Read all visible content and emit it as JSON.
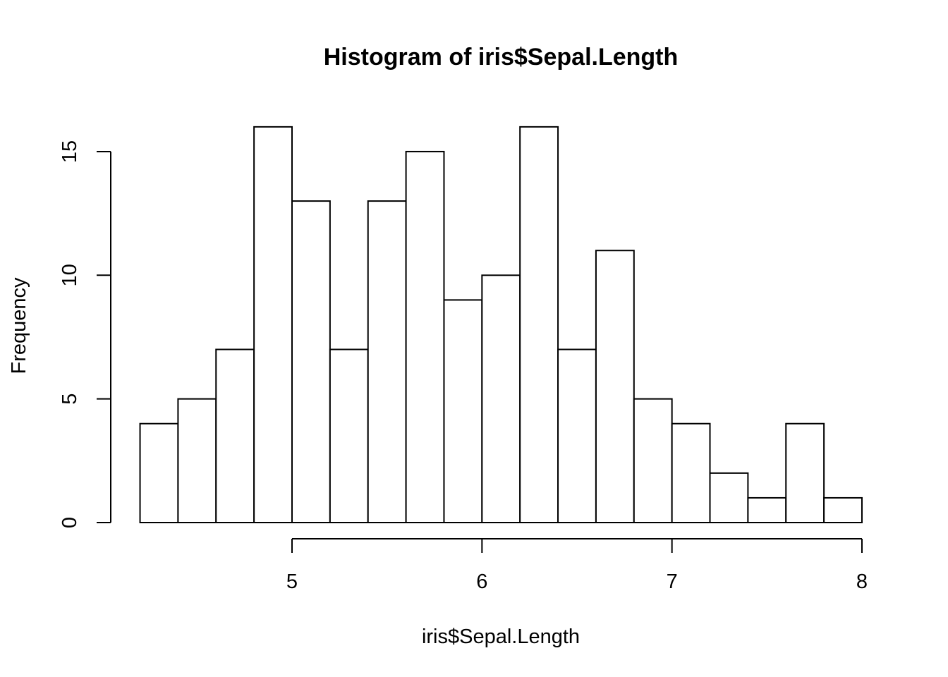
{
  "chart_data": {
    "type": "bar",
    "title": "Histogram of iris$Sepal.Length",
    "xlabel": "iris$Sepal.Length",
    "ylabel": "Frequency",
    "bin_edges": [
      4.2,
      4.4,
      4.6,
      4.8,
      5.0,
      5.2,
      5.4,
      5.6,
      5.8,
      6.0,
      6.2,
      6.4,
      6.6,
      6.8,
      7.0,
      7.2,
      7.4,
      7.6,
      7.8,
      8.0
    ],
    "values": [
      4,
      5,
      7,
      16,
      13,
      7,
      13,
      15,
      9,
      10,
      16,
      7,
      11,
      5,
      4,
      2,
      1,
      4,
      1
    ],
    "xticks": [
      5,
      6,
      7,
      8
    ],
    "yticks": [
      0,
      5,
      10,
      15
    ],
    "xlim": [
      5,
      8
    ],
    "ylim": [
      0,
      15
    ],
    "grid": false,
    "legend": "none",
    "colors": {
      "bar_fill": "#ffffff",
      "bar_stroke": "#000000"
    }
  }
}
